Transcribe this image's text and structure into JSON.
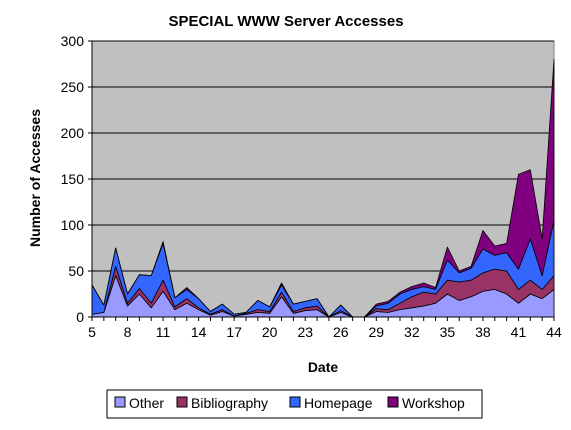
{
  "chart_data": {
    "type": "area",
    "stacked": true,
    "title": "SPECIAL WWW Server Accesses",
    "xlabel": "Date",
    "ylabel": "Number of Accesses",
    "ylim": [
      0,
      300
    ],
    "y_ticks": [
      "0",
      "50",
      "100",
      "150",
      "200",
      "250",
      "300"
    ],
    "grid": "horizontal",
    "legend_position": "bottom",
    "plot_background": "#c0c0c0",
    "x": [
      5,
      6,
      7,
      8,
      9,
      10,
      11,
      12,
      13,
      14,
      15,
      16,
      17,
      18,
      19,
      20,
      21,
      22,
      23,
      24,
      25,
      26,
      27,
      28,
      29,
      30,
      31,
      32,
      33,
      34,
      35,
      36,
      37,
      38,
      39,
      40,
      41,
      42,
      43,
      44
    ],
    "x_tick_labels": [
      "5",
      "8",
      "11",
      "14",
      "17",
      "20",
      "23",
      "26",
      "29",
      "32",
      "35",
      "38",
      "41",
      "44"
    ],
    "series": [
      {
        "name": "Other",
        "color": "#9999ff",
        "values": [
          3,
          5,
          45,
          12,
          25,
          10,
          28,
          8,
          15,
          8,
          2,
          6,
          1,
          3,
          5,
          4,
          22,
          4,
          7,
          8,
          0,
          5,
          0,
          0,
          6,
          5,
          8,
          10,
          12,
          15,
          25,
          18,
          22,
          28,
          30,
          25,
          15,
          25,
          20,
          30
        ]
      },
      {
        "name": "Bibliography",
        "color": "#993366",
        "values": [
          0,
          0,
          10,
          3,
          6,
          5,
          12,
          3,
          5,
          2,
          1,
          2,
          0,
          1,
          3,
          2,
          5,
          2,
          3,
          4,
          0,
          2,
          0,
          0,
          3,
          3,
          7,
          12,
          15,
          10,
          15,
          20,
          18,
          20,
          22,
          25,
          15,
          15,
          10,
          15
        ]
      },
      {
        "name": "Homepage",
        "color": "#3366ff",
        "values": [
          32,
          8,
          20,
          10,
          15,
          30,
          40,
          10,
          10,
          10,
          3,
          6,
          2,
          1,
          10,
          5,
          8,
          8,
          7,
          8,
          0,
          6,
          0,
          0,
          3,
          7,
          10,
          8,
          6,
          5,
          22,
          10,
          13,
          26,
          15,
          20,
          22,
          45,
          15,
          60
        ]
      },
      {
        "name": "Workshop",
        "color": "#800080",
        "values": [
          0,
          0,
          0,
          0,
          0,
          0,
          2,
          0,
          2,
          0,
          0,
          0,
          0,
          0,
          0,
          0,
          2,
          0,
          0,
          0,
          0,
          0,
          0,
          0,
          2,
          2,
          2,
          3,
          4,
          2,
          14,
          2,
          2,
          20,
          10,
          10,
          103,
          75,
          40,
          175
        ]
      }
    ]
  }
}
